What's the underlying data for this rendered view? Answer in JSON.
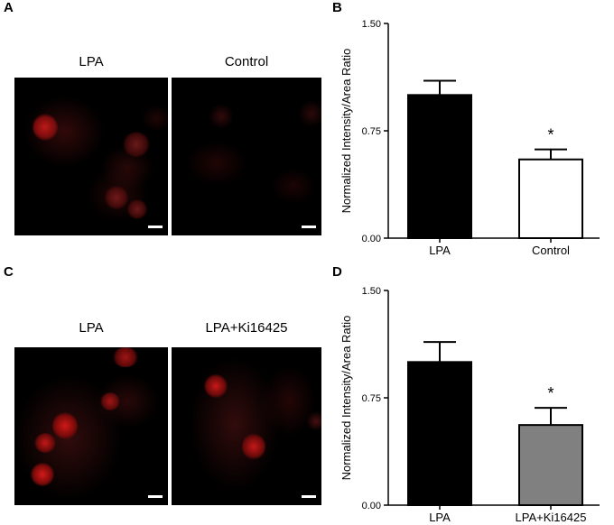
{
  "panels": {
    "a": {
      "letter": "A",
      "left_label": "LPA",
      "right_label": "Control"
    },
    "b": {
      "letter": "B"
    },
    "c": {
      "letter": "C",
      "left_label": "LPA",
      "right_label": "LPA+Ki16425"
    },
    "d": {
      "letter": "D"
    }
  },
  "chart_data": [
    {
      "type": "bar",
      "panel": "B",
      "categories": [
        "LPA",
        "Control"
      ],
      "values": [
        1.0,
        0.55
      ],
      "errors": [
        0.1,
        0.07
      ],
      "bar_colors": [
        "#000000",
        "#ffffff"
      ],
      "significance": [
        "",
        "*"
      ],
      "ylabel": "Normalized Intensity/Area Ratio",
      "ylim": [
        0,
        1.5
      ],
      "yticks": [
        "0.00",
        "0.75",
        "1.50"
      ],
      "xlabel": "",
      "title": "",
      "grid": false
    },
    {
      "type": "bar",
      "panel": "D",
      "categories": [
        "LPA",
        "LPA+Ki16425"
      ],
      "values": [
        1.0,
        0.56
      ],
      "errors": [
        0.14,
        0.12
      ],
      "bar_colors": [
        "#000000",
        "#808080"
      ],
      "significance": [
        "",
        "*"
      ],
      "ylabel": "Normalized Intensity/Area Ratio",
      "ylim": [
        0,
        1.5
      ],
      "yticks": [
        "0.00",
        "0.75",
        "1.50"
      ],
      "xlabel": "",
      "title": "",
      "grid": false
    }
  ]
}
